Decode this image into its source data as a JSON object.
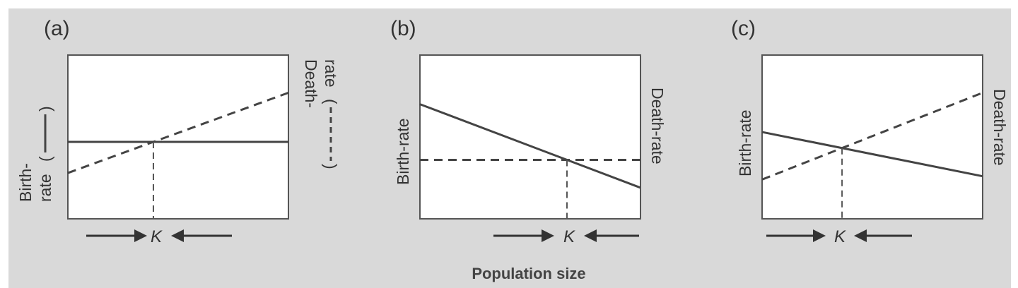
{
  "x_axis_title": "Population size",
  "equilibrium_label": "K",
  "panels": [
    {
      "label": "(a)",
      "left_label_line1": "Birth-",
      "left_label_line2": "rate",
      "right_label_line1": "Death-",
      "right_label_line2": "rate",
      "birth_rate": {
        "style": "solid",
        "start": 0.47,
        "end": 0.47
      },
      "death_rate": {
        "style": "dashed",
        "start": 0.28,
        "end": 0.77
      }
    },
    {
      "label": "(b)",
      "left_label_line1": "Birth-rate",
      "right_label_line1": "Death-rate",
      "birth_rate": {
        "style": "solid",
        "start": 0.7,
        "end": 0.19
      },
      "death_rate": {
        "style": "dashed",
        "start": 0.36,
        "end": 0.36
      }
    },
    {
      "label": "(c)",
      "left_label_line1": "Birth-rate",
      "right_label_line1": "Death-rate",
      "birth_rate": {
        "style": "solid",
        "start": 0.53,
        "end": 0.26
      },
      "death_rate": {
        "style": "dashed",
        "start": 0.24,
        "end": 0.77
      }
    }
  ]
}
